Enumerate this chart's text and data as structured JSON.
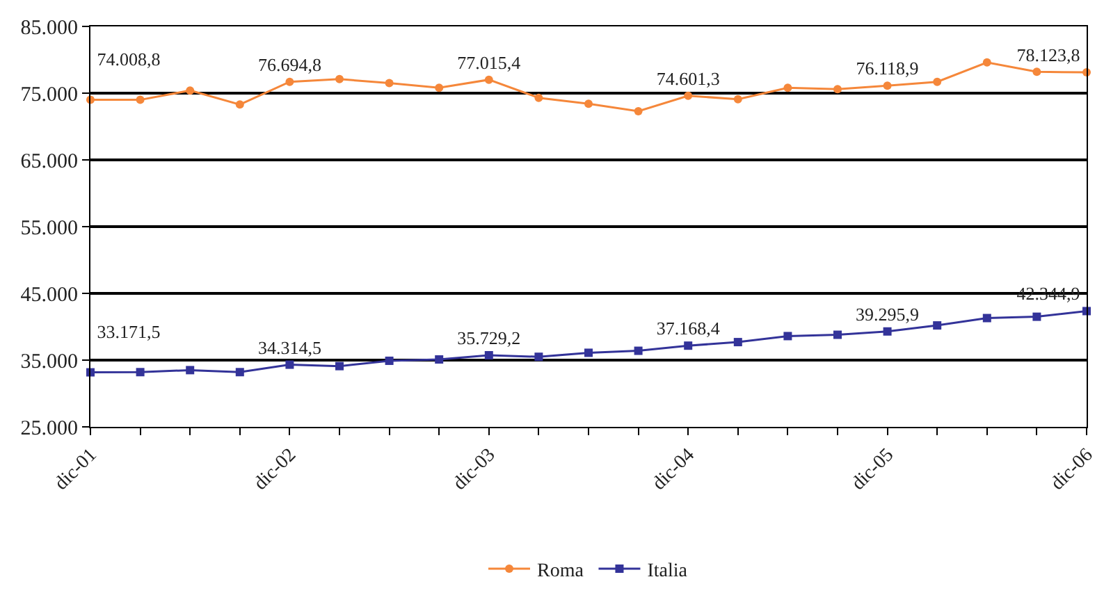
{
  "chart_data": {
    "type": "line",
    "categories": [
      "dic-01",
      null,
      null,
      null,
      "dic-02",
      null,
      null,
      null,
      "dic-03",
      null,
      null,
      null,
      "dic-04",
      null,
      null,
      null,
      "dic-05",
      null,
      null,
      null,
      "dic-06"
    ],
    "series": [
      {
        "name": "Roma",
        "color": "#f5873a",
        "marker": "circle",
        "values": [
          74008.8,
          74000,
          75400,
          73300,
          76694.8,
          77100,
          76500,
          75800,
          77015.4,
          74300,
          73400,
          72300,
          74601.3,
          74100,
          75800,
          75600,
          76118.9,
          76700,
          79600,
          78200,
          78123.8
        ],
        "value_labels": [
          "74.008,8",
          null,
          null,
          null,
          "76.694,8",
          null,
          null,
          null,
          "77.015,4",
          null,
          null,
          null,
          "74.601,3",
          null,
          null,
          null,
          "76.118,9",
          null,
          null,
          null,
          "78.123,8"
        ]
      },
      {
        "name": "Italia",
        "color": "#333399",
        "marker": "square",
        "values": [
          33171.5,
          33200,
          33500,
          33200,
          34314.5,
          34100,
          34900,
          35100,
          35729.2,
          35500,
          36100,
          36400,
          37168.4,
          37700,
          38600,
          38800,
          39295.9,
          40200,
          41300,
          41500,
          42344.9
        ],
        "value_labels": [
          "33.171,5",
          null,
          null,
          null,
          "34.314,5",
          null,
          null,
          null,
          "35.729,2",
          null,
          null,
          null,
          "37.168,4",
          null,
          null,
          null,
          "39.295,9",
          null,
          null,
          null,
          "42.344,9"
        ]
      }
    ],
    "ylim": [
      25000,
      85000
    ],
    "yticks": [
      {
        "value": 25000,
        "label": "25.000"
      },
      {
        "value": 35000,
        "label": "35.000"
      },
      {
        "value": 45000,
        "label": "45.000"
      },
      {
        "value": 55000,
        "label": "55.000"
      },
      {
        "value": 65000,
        "label": "65.000"
      },
      {
        "value": 75000,
        "label": "75.000"
      },
      {
        "value": 85000,
        "label": "85.000"
      }
    ],
    "grid": "y",
    "legend": "bottom",
    "line_style": "solid"
  }
}
